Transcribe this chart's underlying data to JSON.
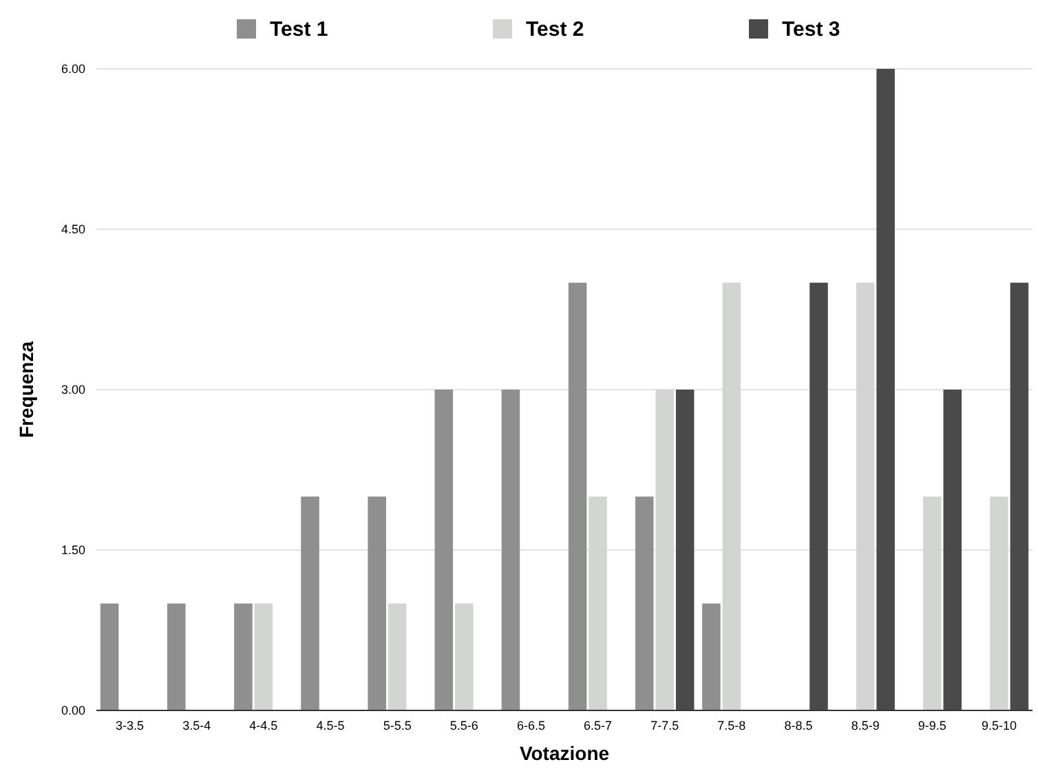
{
  "chart_data": {
    "type": "bar",
    "xlabel": "Votazione",
    "ylabel": "Frequenza",
    "categories": [
      "3-3.5",
      "3.5-4",
      "4-4.5",
      "4.5-5",
      "5-5.5",
      "5.5-6",
      "6-6.5",
      "6.5-7",
      "7-7.5",
      "7.5-8",
      "8-8.5",
      "8.5-9",
      "9-9.5",
      "9.5-10"
    ],
    "series": [
      {
        "name": "Test 1",
        "color": "#8f8f8f",
        "values": [
          1,
          1,
          1,
          2,
          2,
          3,
          3,
          4,
          2,
          1,
          0,
          0,
          0,
          0
        ]
      },
      {
        "name": "Test 2",
        "color": "#d3d5d3",
        "values": [
          0,
          0,
          1,
          0,
          1,
          1,
          0,
          2,
          3,
          4,
          0,
          4,
          2,
          2
        ]
      },
      {
        "name": "Test 3",
        "color": "#4a4a4a",
        "values": [
          0,
          0,
          0,
          0,
          0,
          0,
          0,
          0,
          3,
          0,
          4,
          6,
          3,
          4
        ]
      }
    ],
    "ylim": [
      0,
      6
    ],
    "yticks": [
      {
        "value": 0,
        "label": "0.00"
      },
      {
        "value": 1.5,
        "label": "1.50"
      },
      {
        "value": 3,
        "label": "3.00"
      },
      {
        "value": 4.5,
        "label": "4.50"
      },
      {
        "value": 6,
        "label": "6.00"
      }
    ],
    "grid": "y",
    "legend": "top"
  }
}
